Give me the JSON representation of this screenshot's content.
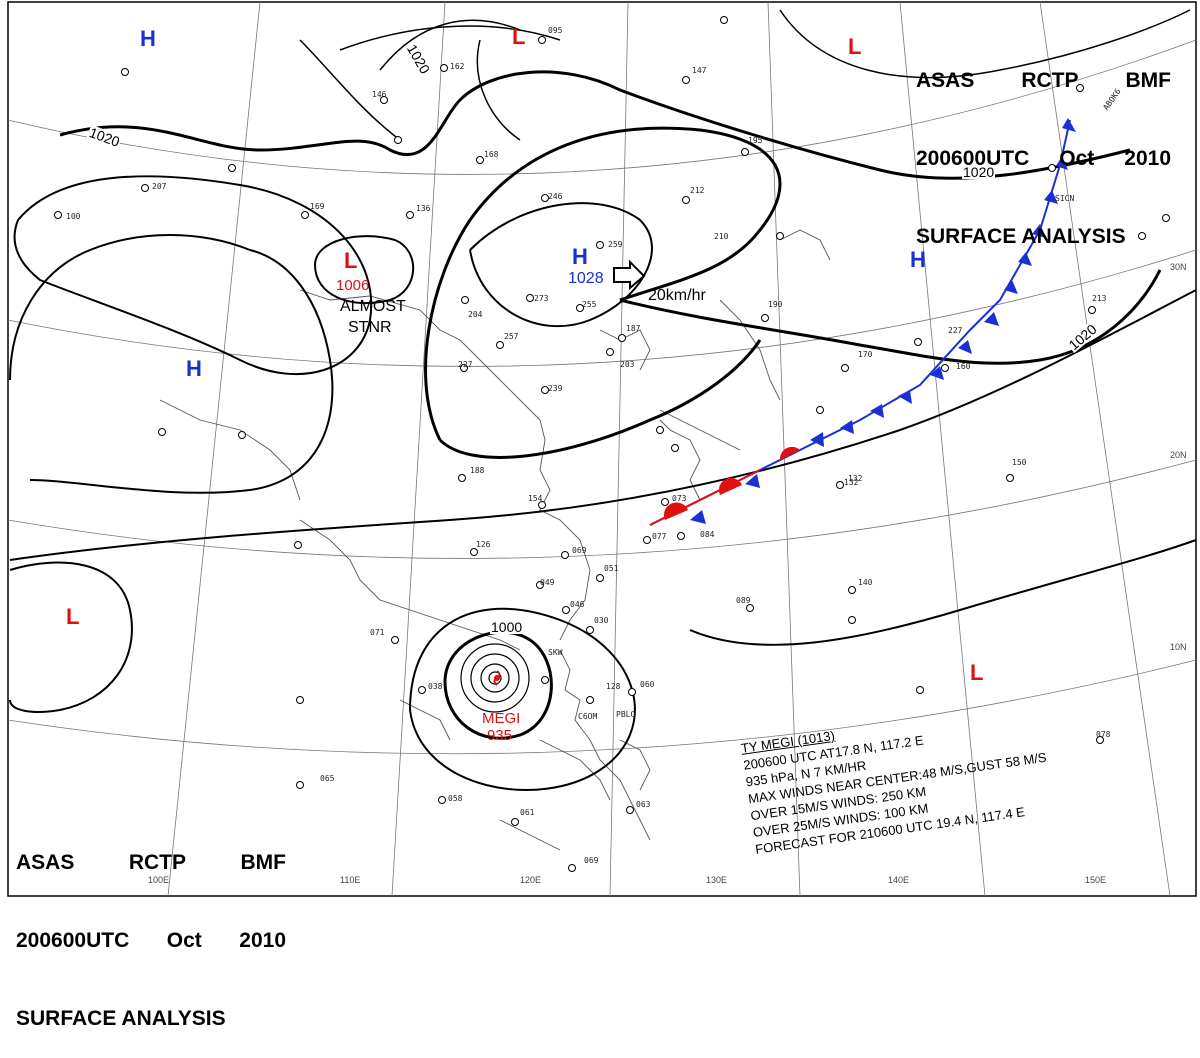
{
  "header": {
    "line1": [
      "ASAS",
      "RCTP",
      "BMF"
    ],
    "line2": [
      "200600UTC",
      "Oct",
      "2010"
    ],
    "line3": "SURFACE ANALYSIS"
  },
  "pressure_centers": [
    {
      "type": "H",
      "label": "1028"
    },
    {
      "type": "L",
      "label": "1006"
    },
    {
      "type": "H"
    },
    {
      "type": "H"
    },
    {
      "type": "H"
    },
    {
      "type": "L"
    },
    {
      "type": "L"
    },
    {
      "type": "L"
    },
    {
      "type": "L"
    }
  ],
  "annotations": {
    "stationary_1": "ALMOST",
    "stationary_2": "STNR",
    "motion": "20km/hr",
    "typhoon_name": "MEGI",
    "typhoon_pressure": "935"
  },
  "isobar_labels": [
    "1020",
    "1020",
    "1020",
    "1020",
    "1000"
  ],
  "grid_labels": {
    "lon": [
      "100E",
      "110E",
      "120E",
      "130E",
      "140E",
      "150E"
    ],
    "lat": [
      "30N",
      "20N",
      "10N"
    ]
  },
  "typhoon_info": {
    "title": "TY  MEGI  (1013)",
    "line1": "200600 UTC  AT17.8 N, 117.2 E",
    "line2": "935 hPa, N  7 KM/HR",
    "line3": "MAX WINDS NEAR CENTER:48 M/S,GUST 58 M/S",
    "line4": "OVER 15M/S WINDS: 250 KM",
    "line5": "OVER 25M/S WINDS: 100 KM",
    "line6": "FORECAST FOR 210600 UTC 19.4 N, 117.4 E"
  },
  "station_ids": [
    "ABOK6",
    "SICN",
    "SKW",
    "PBLO",
    "C6OM"
  ],
  "station_obs": [
    "095",
    "162",
    "146",
    "168",
    "207",
    "169",
    "136",
    "100",
    "246",
    "259",
    "212",
    "210",
    "147",
    "195",
    "190",
    "273",
    "255",
    "257",
    "187",
    "203",
    "239",
    "204",
    "227",
    "188",
    "154",
    "126",
    "073",
    "077",
    "084",
    "069",
    "049",
    "051",
    "046",
    "030",
    "071",
    "038",
    "060",
    "128",
    "065",
    "058",
    "061",
    "063",
    "069",
    "078",
    "089",
    "140",
    "132",
    "150",
    "170",
    "227",
    "160",
    "213",
    "132"
  ],
  "colors": {
    "high": "#1a2fd4",
    "low": "#e01010",
    "front_cold": "#1a2fd4",
    "front_warm": "#e01010"
  }
}
